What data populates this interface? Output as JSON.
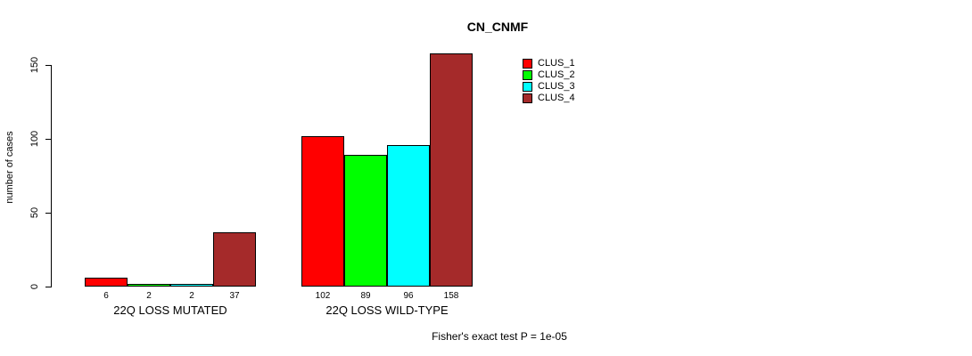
{
  "chart_data": {
    "type": "bar",
    "title": "CN_CNMF",
    "ylabel": "number of cases",
    "xlabel": "",
    "ylim": [
      0,
      150
    ],
    "yticks": [
      0,
      50,
      100,
      150
    ],
    "grid": false,
    "legend_position": "top-right",
    "bar_value_labels": true,
    "categories": [
      "22Q LOSS MUTATED",
      "22Q LOSS WILD-TYPE"
    ],
    "series": [
      {
        "name": "CLUS_1",
        "color": "#FF0000",
        "values": [
          6,
          102
        ]
      },
      {
        "name": "CLUS_2",
        "color": "#00FF00",
        "values": [
          2,
          89
        ]
      },
      {
        "name": "CLUS_3",
        "color": "#00FFFF",
        "values": [
          2,
          96
        ]
      },
      {
        "name": "CLUS_4",
        "color": "#A52A2A",
        "values": [
          37,
          158
        ]
      }
    ],
    "annotation": "Fisher's exact test P = 1e-05"
  }
}
